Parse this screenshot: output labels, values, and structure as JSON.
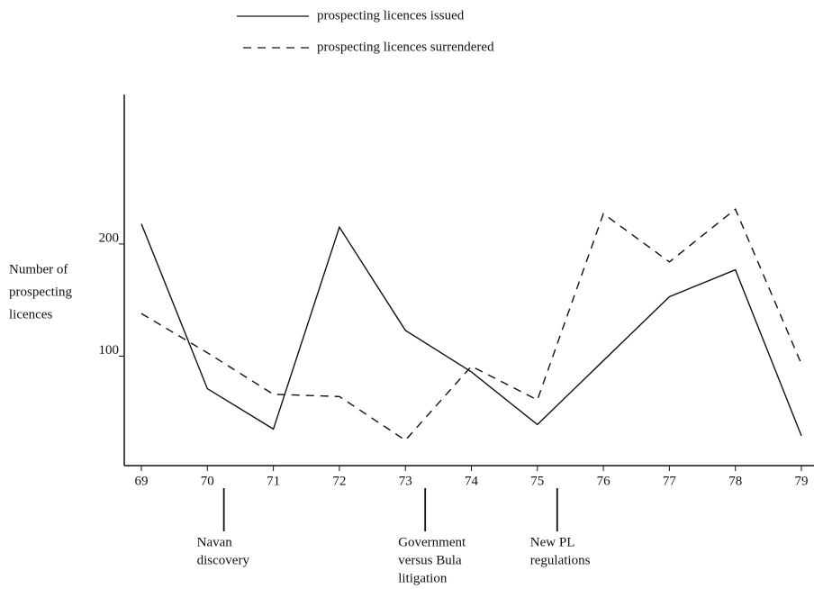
{
  "chart_data": {
    "type": "line",
    "x": [
      69,
      70,
      71,
      72,
      73,
      74,
      75,
      76,
      77,
      78,
      79
    ],
    "xlim": [
      68.75,
      80.2
    ],
    "xticks": [
      69,
      70,
      71,
      72,
      73,
      74,
      75,
      76,
      77,
      78,
      79
    ],
    "ylim": [
      0,
      330
    ],
    "yticks": [
      100,
      200
    ],
    "ylabel_lines": [
      "Number of",
      "prospecting",
      "licences"
    ],
    "series": [
      {
        "name": "prospecting licences issued",
        "color": "#111111",
        "dash": "none",
        "values": [
          218,
          71,
          35,
          215,
          123,
          86,
          39,
          96,
          153,
          177,
          29
        ]
      },
      {
        "name": "prospecting licences surrendered",
        "color": "#111111",
        "dash": "9 7",
        "values": [
          138,
          103,
          66,
          64,
          25,
          91,
          61,
          227,
          184,
          231,
          93
        ]
      }
    ],
    "annotations": [
      {
        "x": 70.25,
        "lines": [
          "Navan",
          "discovery"
        ]
      },
      {
        "x": 73.3,
        "lines": [
          "Government",
          "versus Bula",
          "litigation"
        ]
      },
      {
        "x": 75.3,
        "lines": [
          "New PL",
          "regulations"
        ]
      }
    ]
  }
}
